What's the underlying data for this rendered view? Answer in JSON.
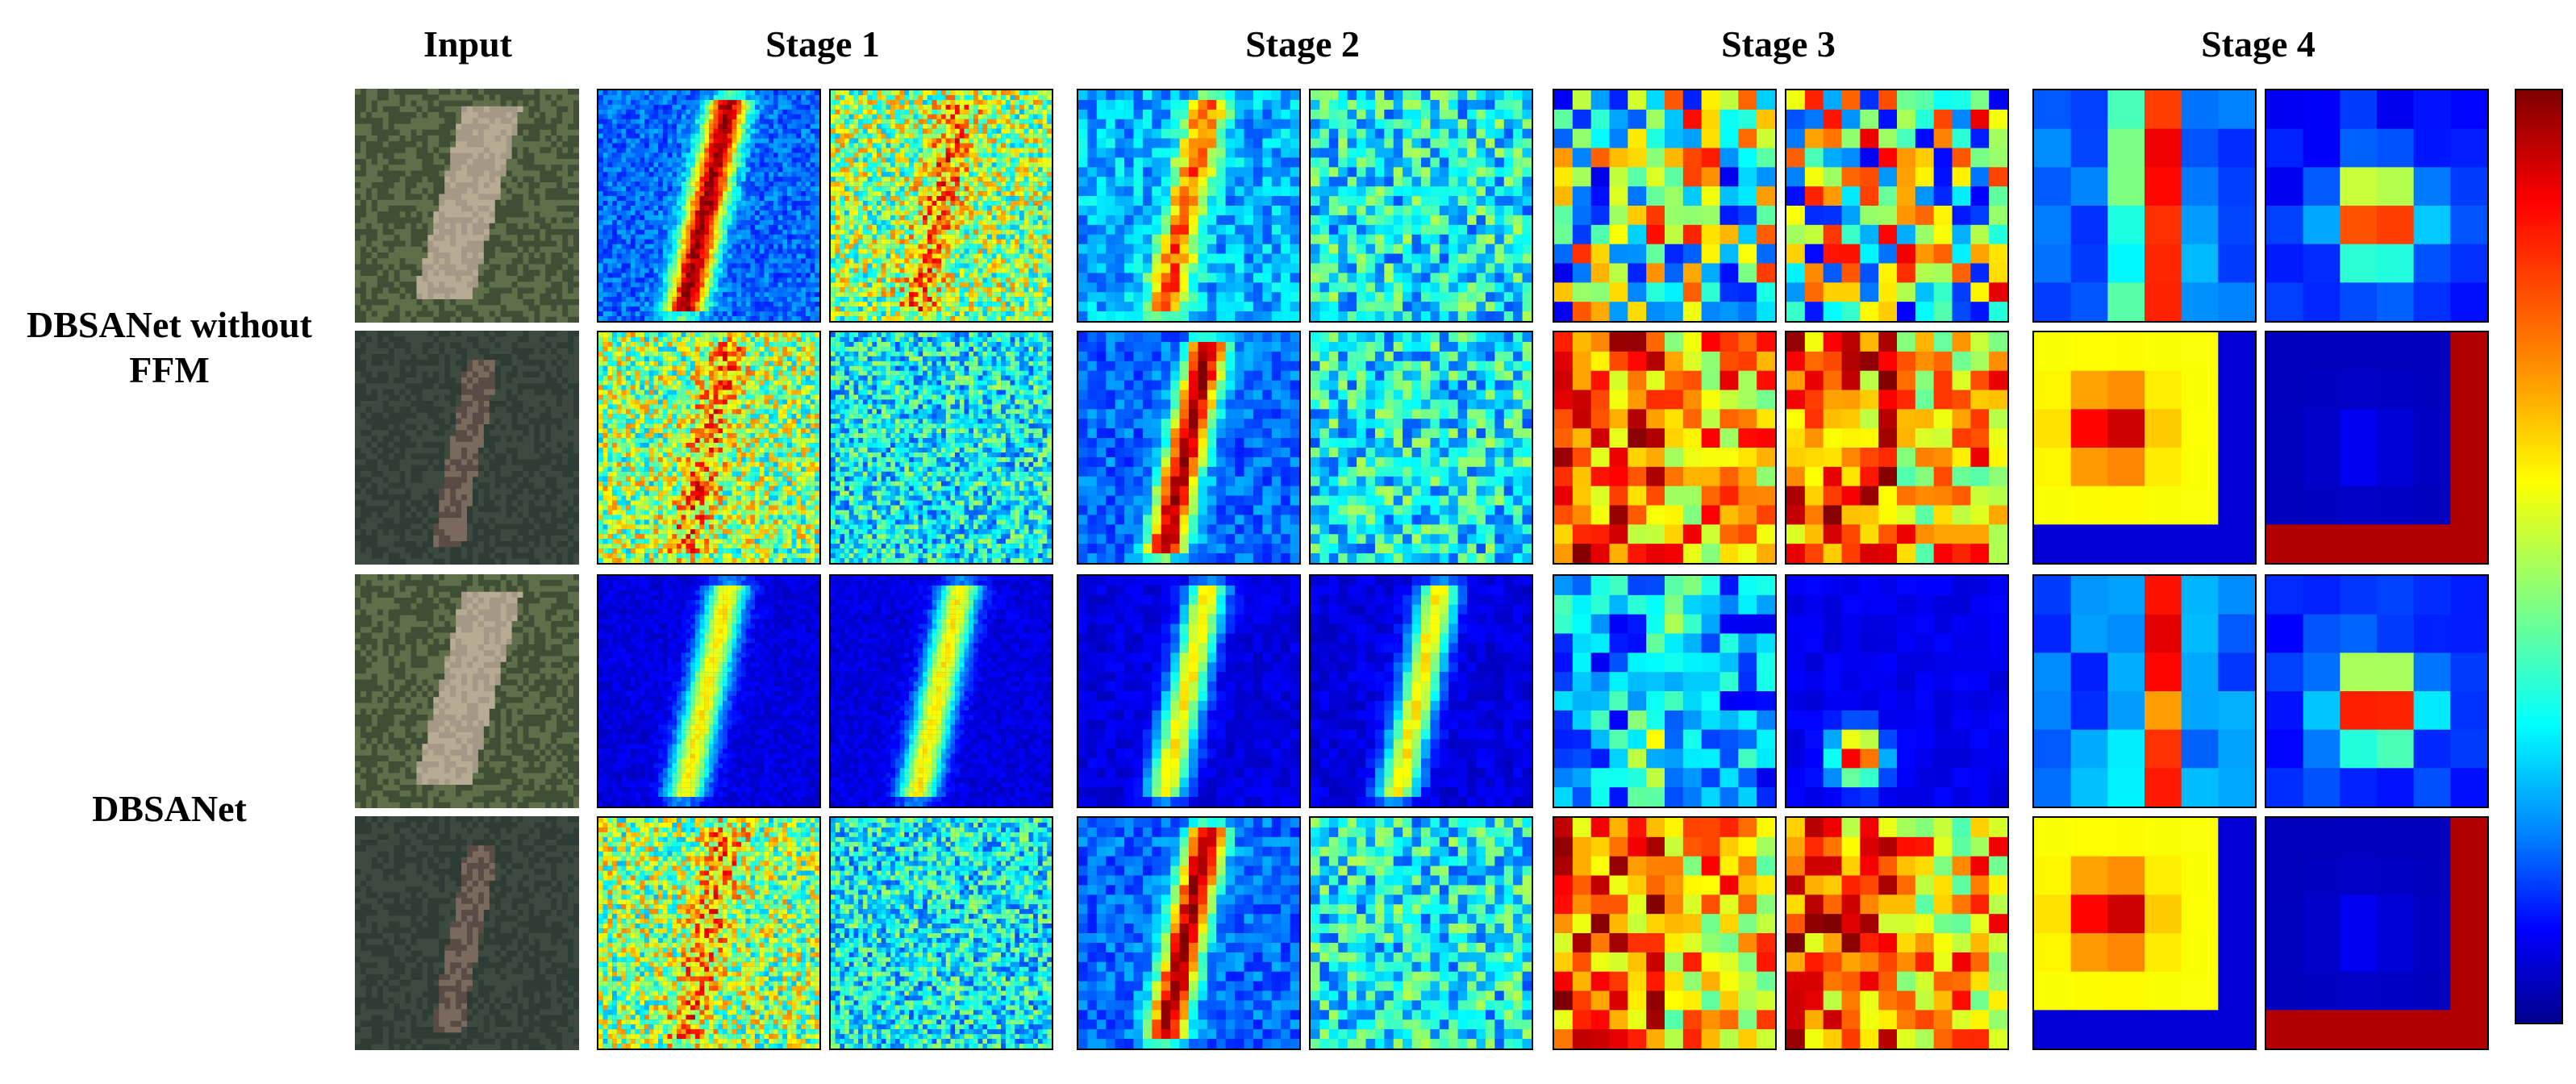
{
  "column_titles": {
    "input": "Input",
    "stage1": "Stage 1",
    "stage2": "Stage 2",
    "stage3": "Stage 3",
    "stage4": "Stage 4"
  },
  "row_labels": {
    "group1": "DBSANet without FFM",
    "group2": "DBSANet"
  },
  "colormap": {
    "name": "jet",
    "stops": [
      "#00008f",
      "#0000ff",
      "#0080ff",
      "#00ffff",
      "#80ff80",
      "#ffff00",
      "#ff8000",
      "#ff0000",
      "#7f0000"
    ]
  },
  "input_photos": [
    {
      "scene": "bright-landslide",
      "colors": [
        "#5f6f4a",
        "#8c8a6f",
        "#b7ab93",
        "#3f4f35",
        "#a59886"
      ]
    },
    {
      "scene": "dark-forest-scar",
      "colors": [
        "#2d3d35",
        "#1f2e28",
        "#5a4c44",
        "#3c4a40",
        "#7a6a5e"
      ]
    },
    {
      "scene": "bright-landslide",
      "colors": [
        "#5f6f4a",
        "#8c8a6f",
        "#b7ab93",
        "#3f4f35",
        "#a59886"
      ]
    },
    {
      "scene": "dark-forest-scar",
      "colors": [
        "#2d3d35",
        "#1f2e28",
        "#5a4c44",
        "#3c4a40",
        "#7a6a5e"
      ]
    }
  ],
  "heatmaps": {
    "grid_sizes": [
      48,
      48,
      24,
      24,
      12,
      12,
      6,
      6
    ],
    "rows": [
      {
        "pattern": [
          "streak-hot",
          "noise-mid",
          "streak-mid",
          "noise-lowmid",
          "blocky-mixed",
          "blocky-mixed",
          "column-hot",
          "blob-hot"
        ]
      },
      {
        "pattern": [
          "noise-mid",
          "noise-lowmid",
          "streak-hot",
          "noise-lowmid",
          "blocky-hot",
          "blocky-hot",
          "block-yellow",
          "block-blue"
        ]
      },
      {
        "pattern": [
          "streak-cold",
          "streak-cold",
          "streak-cold",
          "streak-cold",
          "blocky-cold",
          "blob-small",
          "column-mid",
          "blob-hot"
        ]
      },
      {
        "pattern": [
          "noise-mid",
          "noise-lowmid",
          "streak-hot",
          "noise-lowmid",
          "blocky-hot",
          "blocky-hot",
          "block-yellow",
          "block-blue"
        ]
      }
    ]
  }
}
